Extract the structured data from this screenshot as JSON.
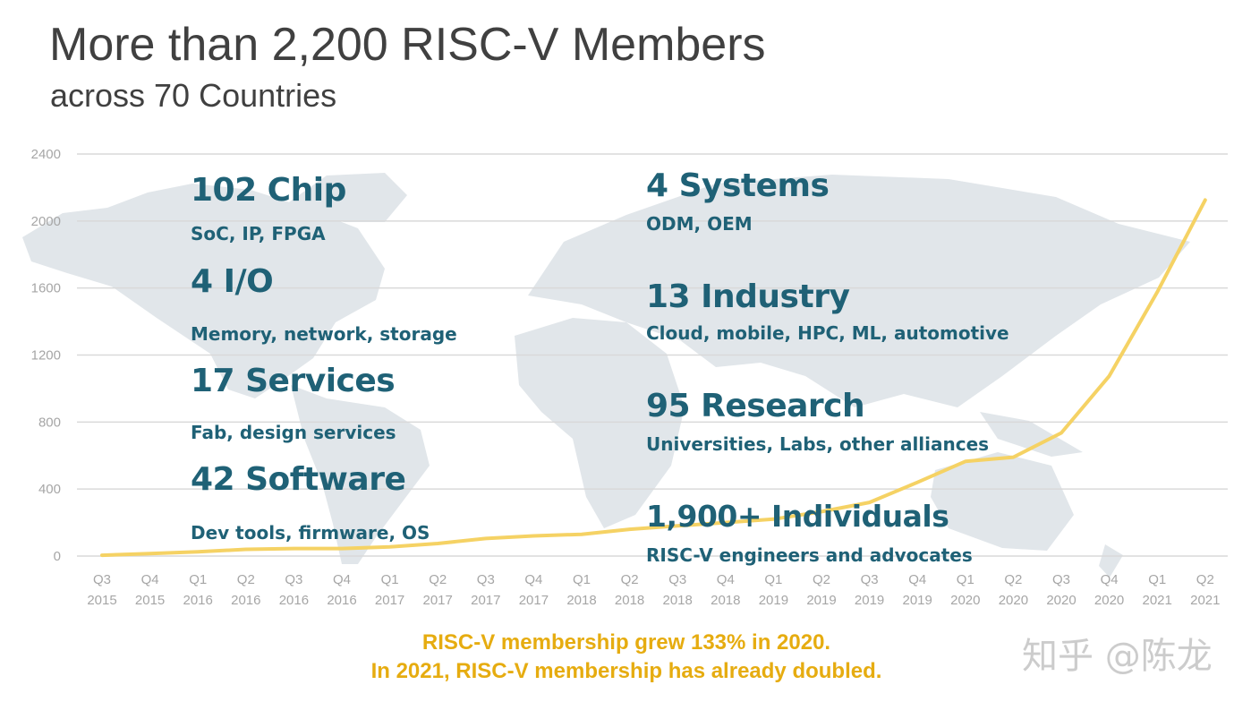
{
  "slide": {
    "title": "More than 2,200 RISC-V Members",
    "subtitle": "across 70 Countries",
    "footer_line1": "RISC-V membership grew 133% in 2020.",
    "footer_line2": "In 2021, RISC-V membership has already doubled.",
    "watermark": "知乎 @陈龙"
  },
  "categories": [
    {
      "count_label": "102 Chip",
      "description": "SoC, IP, FPGA"
    },
    {
      "count_label": "4 I/O",
      "description": "Memory, network, storage"
    },
    {
      "count_label": "17 Services",
      "description": "Fab, design services"
    },
    {
      "count_label": "42 Software",
      "description": "Dev tools, firmware, OS"
    },
    {
      "count_label": "4 Systems",
      "description": "ODM, OEM"
    },
    {
      "count_label": "13 Industry",
      "description": "Cloud, mobile, HPC, ML, automotive"
    },
    {
      "count_label": "95 Research",
      "description": "Universities, Labs, other alliances"
    },
    {
      "count_label": "1,900+ Individuals",
      "description": "RISC-V engineers and advocates"
    }
  ],
  "colors": {
    "line": "#f5d264",
    "grid": "#d9d9d9",
    "tick": "#a6a6a6",
    "title": "#404040",
    "category_text": "#1f6176",
    "footer": "#e6ac10",
    "map": "#e1e6ea"
  },
  "chart_data": {
    "type": "line",
    "title": "",
    "xlabel": "",
    "ylabel": "",
    "ylim": [
      0,
      2400
    ],
    "yticks": [
      0,
      400,
      800,
      1200,
      1600,
      2000,
      2400
    ],
    "grid": true,
    "categories": [
      [
        "Q3",
        "2015"
      ],
      [
        "Q4",
        "2015"
      ],
      [
        "Q1",
        "2016"
      ],
      [
        "Q2",
        "2016"
      ],
      [
        "Q3",
        "2016"
      ],
      [
        "Q4",
        "2016"
      ],
      [
        "Q1",
        "2017"
      ],
      [
        "Q2",
        "2017"
      ],
      [
        "Q3",
        "2017"
      ],
      [
        "Q4",
        "2017"
      ],
      [
        "Q1",
        "2018"
      ],
      [
        "Q2",
        "2018"
      ],
      [
        "Q3",
        "2018"
      ],
      [
        "Q4",
        "2018"
      ],
      [
        "Q1",
        "2019"
      ],
      [
        "Q2",
        "2019"
      ],
      [
        "Q3",
        "2019"
      ],
      [
        "Q4",
        "2019"
      ],
      [
        "Q1",
        "2020"
      ],
      [
        "Q2",
        "2020"
      ],
      [
        "Q3",
        "2020"
      ],
      [
        "Q4",
        "2020"
      ],
      [
        "Q1",
        "2021"
      ],
      [
        "Q2",
        "2021"
      ]
    ],
    "values": [
      5,
      15,
      25,
      40,
      45,
      45,
      55,
      75,
      105,
      120,
      130,
      160,
      180,
      200,
      220,
      265,
      320,
      440,
      565,
      590,
      735,
      1075,
      1575,
      2125
    ]
  }
}
